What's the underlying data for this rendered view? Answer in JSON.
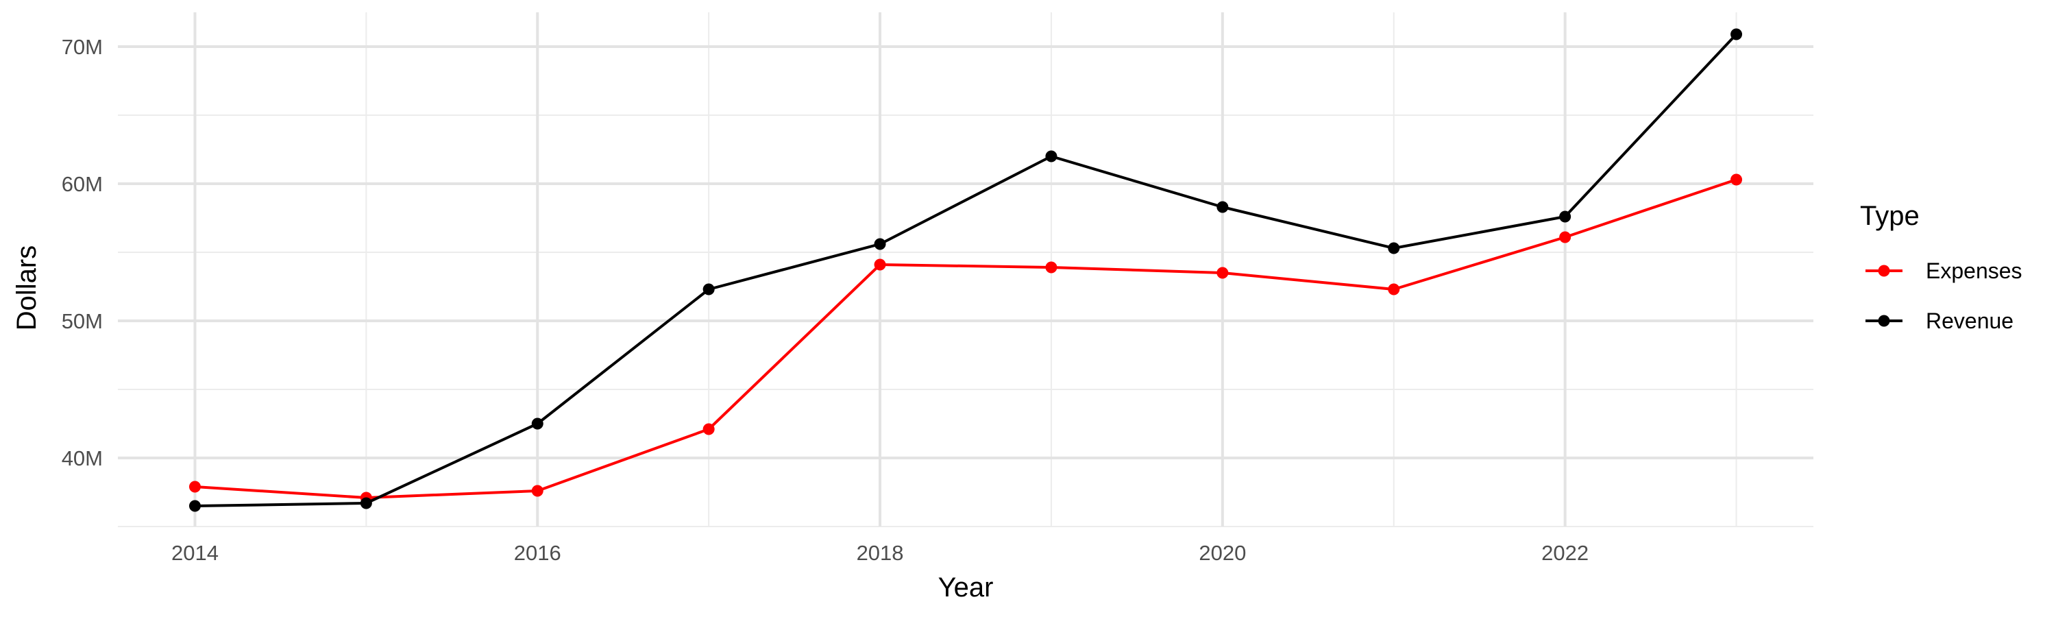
{
  "chart_data": {
    "type": "line",
    "title": "",
    "xlabel": "Year",
    "ylabel": "Dollars",
    "x": [
      2014,
      2015,
      2016,
      2017,
      2018,
      2019,
      2020,
      2021,
      2022,
      2023
    ],
    "xlim": [
      2013.55,
      2023.45
    ],
    "ylim": [
      35000000,
      72500000
    ],
    "x_ticks": [
      2014,
      2016,
      2018,
      2020,
      2022
    ],
    "x_tick_labels": [
      "2014",
      "2016",
      "2018",
      "2020",
      "2022"
    ],
    "y_ticks": [
      40000000,
      50000000,
      60000000,
      70000000
    ],
    "y_tick_labels": [
      "40M",
      "50M",
      "60M",
      "70M"
    ],
    "grid": true,
    "legend": {
      "title": "Type",
      "placement": "right"
    },
    "series": [
      {
        "name": "Expenses",
        "color": "#ff0000",
        "values": [
          37900000,
          37100000,
          37600000,
          42100000,
          54100000,
          53900000,
          53500000,
          52300000,
          56100000,
          60300000
        ]
      },
      {
        "name": "Revenue",
        "color": "#000000",
        "values": [
          36500000,
          36700000,
          42500000,
          52300000,
          55600000,
          62000000,
          58300000,
          55300000,
          57600000,
          70900000
        ]
      }
    ]
  }
}
